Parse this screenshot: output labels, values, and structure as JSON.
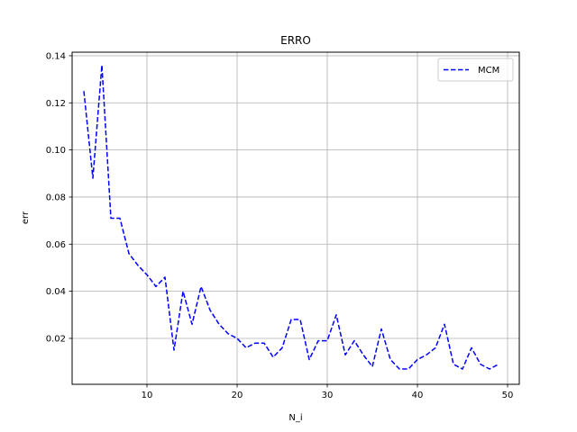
{
  "chart_data": {
    "type": "line",
    "title": "ERRO",
    "xlabel": "N_i",
    "ylabel": "err",
    "xlim": [
      1.7,
      51.3
    ],
    "ylim": [
      0.0005,
      0.1415
    ],
    "xticks": [
      10,
      20,
      30,
      40,
      50
    ],
    "yticks": [
      0.02,
      0.04,
      0.06,
      0.08,
      0.1,
      0.12,
      0.14
    ],
    "xtick_labels": [
      "10",
      "20",
      "30",
      "40",
      "50"
    ],
    "ytick_labels": [
      "0.02",
      "0.04",
      "0.06",
      "0.08",
      "0.10",
      "0.12",
      "0.14"
    ],
    "grid": true,
    "legend_position": "top-right",
    "series": [
      {
        "name": "MCM",
        "color": "#0000ff",
        "linestyle": "dashed",
        "x": [
          3,
          4,
          5,
          6,
          7,
          8,
          9,
          10,
          11,
          12,
          13,
          14,
          15,
          16,
          17,
          18,
          19,
          20,
          21,
          22,
          23,
          24,
          25,
          26,
          27,
          28,
          29,
          30,
          31,
          32,
          33,
          34,
          35,
          36,
          37,
          38,
          39,
          40,
          41,
          42,
          43,
          44,
          45,
          46,
          47,
          48,
          49
        ],
        "y": [
          0.125,
          0.088,
          0.136,
          0.071,
          0.071,
          0.056,
          0.051,
          0.047,
          0.042,
          0.046,
          0.015,
          0.04,
          0.026,
          0.042,
          0.032,
          0.026,
          0.022,
          0.02,
          0.016,
          0.018,
          0.018,
          0.012,
          0.016,
          0.028,
          0.028,
          0.011,
          0.019,
          0.019,
          0.03,
          0.013,
          0.019,
          0.013,
          0.008,
          0.024,
          0.011,
          0.007,
          0.007,
          0.011,
          0.013,
          0.016,
          0.026,
          0.009,
          0.007,
          0.016,
          0.009,
          0.007,
          0.009
        ]
      }
    ]
  }
}
